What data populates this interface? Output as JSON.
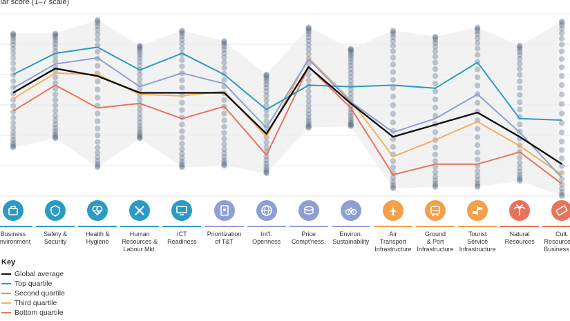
{
  "chart_data": {
    "type": "line",
    "ylabel": "llar score (1–7 scale)",
    "ylim": [
      1,
      7
    ],
    "grid": true,
    "categories": [
      "Business\nEnvironment",
      "Safety &\nSecurity",
      "Health &\nHygiene",
      "Human\nResources &\nLabour Mkt.",
      "ICT\nReadiness",
      "Prioritization\nof T&T",
      "Int'l.\nOpenness",
      "Price\nCompt'ness.",
      "Environ.\nSustainability",
      "Air\nTransport\nInfrastructure",
      "Ground\n& Port\nInfrastructure",
      "Tourist\nService\nInfrastructure",
      "Natural\nResources",
      "Cult.\nResources &\nBusiness Tra"
    ],
    "series": [
      {
        "name": "Global average",
        "color": "#111111",
        "values": [
          4.4,
          5.2,
          4.95,
          4.4,
          4.4,
          4.4,
          3.05,
          5.25,
          4.05,
          2.95,
          3.35,
          3.75,
          2.95,
          2.05
        ]
      },
      {
        "name": "Top quartile",
        "color": "#2b9bc4",
        "values": [
          5.0,
          5.7,
          5.9,
          5.15,
          5.7,
          5.0,
          3.85,
          4.65,
          4.6,
          4.65,
          4.55,
          5.4,
          3.55,
          3.5
        ]
      },
      {
        "name": "Second quartile",
        "color": "#8e9fd4",
        "values": [
          4.55,
          5.35,
          5.55,
          4.6,
          5.05,
          4.7,
          3.25,
          5.5,
          4.1,
          3.1,
          3.55,
          4.35,
          3.1,
          1.6
        ]
      },
      {
        "name": "Third quartile",
        "color": "#f2b05e",
        "values": [
          4.2,
          5.05,
          5.0,
          4.35,
          4.3,
          4.45,
          2.95,
          5.55,
          4.15,
          2.3,
          2.85,
          3.45,
          2.65,
          1.7
        ]
      },
      {
        "name": "Bottom quartile",
        "color": "#e8735a",
        "values": [
          3.8,
          4.65,
          3.9,
          4.05,
          3.55,
          3.95,
          2.35,
          5.25,
          3.9,
          1.7,
          2.05,
          2.05,
          2.45,
          1.4
        ]
      }
    ],
    "range": {
      "min": [
        2.6,
        2.9,
        1.95,
        2.9,
        1.95,
        2.0,
        1.75,
        3.25,
        3.3,
        1.25,
        1.3,
        1.3,
        1.5,
        1.0
      ],
      "max": [
        6.35,
        6.35,
        6.8,
        5.95,
        6.45,
        6.1,
        5.0,
        6.55,
        5.85,
        6.45,
        6.25,
        6.55,
        5.95,
        6.75
      ]
    },
    "countries_per_pillar": 28
  },
  "pillars": {
    "colors": [
      "#2b9bc4",
      "#2b9bc4",
      "#2b9bc4",
      "#2b9bc4",
      "#2b9bc4",
      "#8e9fd4",
      "#8e9fd4",
      "#8e9fd4",
      "#8e9fd4",
      "#f2a04a",
      "#f2a04a",
      "#f2a04a",
      "#e8735a",
      "#e8735a"
    ],
    "icons": [
      "briefcase-icon",
      "shield-icon",
      "heart-pulse-icon",
      "tools-icon",
      "monitor-icon",
      "document-icon",
      "globe-icon",
      "coins-icon",
      "bicycle-icon",
      "airplane-icon",
      "bus-icon",
      "signpost-icon",
      "palm-tree-icon",
      "ticket-icon"
    ]
  },
  "key": {
    "title": "Key",
    "items": [
      {
        "label": "Global average",
        "color": "#111111"
      },
      {
        "label": "Top quartile",
        "color": "#2b9bc4"
      },
      {
        "label": "Second quartile",
        "color": "#8e9fd4"
      },
      {
        "label": "Third quartile",
        "color": "#f2b05e"
      },
      {
        "label": "Bottom quartile",
        "color": "#e8735a"
      }
    ]
  }
}
